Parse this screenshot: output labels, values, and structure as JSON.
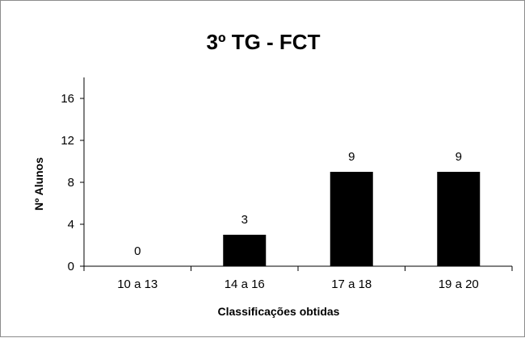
{
  "chart_data": {
    "type": "bar",
    "title": "3º TG - FCT",
    "xlabel": "Classificações obtidas",
    "ylabel": "Nº Alunos",
    "categories": [
      "10 a 13",
      "14 a 16",
      "17 a 18",
      "19 a 20"
    ],
    "values": [
      0,
      3,
      9,
      9
    ],
    "data_labels": [
      "0",
      "3",
      "9",
      "9"
    ],
    "ylim": [
      0,
      18
    ],
    "yticks": [
      0,
      4,
      8,
      12,
      16
    ],
    "ytick_labels": [
      "0",
      "4",
      "8",
      "12",
      "16"
    ],
    "bar_color": "#000000",
    "grid": false,
    "legend": "none"
  }
}
